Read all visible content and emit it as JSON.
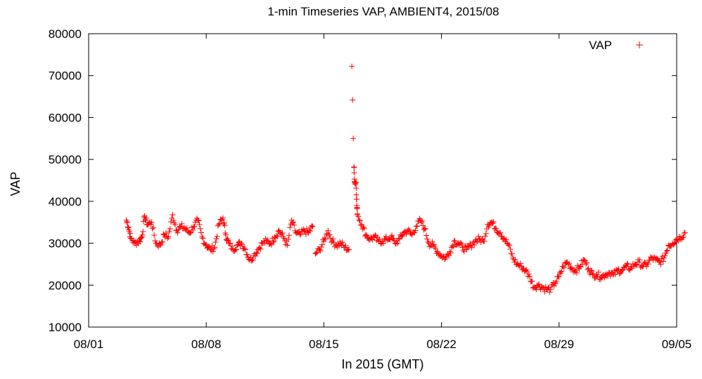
{
  "chart_data": {
    "type": "scatter",
    "title": "1-min Timeseries VAP, AMBIENT4, 2015/08",
    "xlabel": "In 2015 (GMT)",
    "ylabel": "VAP",
    "x_ticks": [
      "08/01",
      "08/08",
      "08/15",
      "08/22",
      "08/29",
      "09/05"
    ],
    "y_ticks": [
      "10000",
      "20000",
      "30000",
      "40000",
      "50000",
      "60000",
      "70000",
      "80000"
    ],
    "xlim": [
      "2015-08-01",
      "2015-09-05"
    ],
    "ylim": [
      10000,
      80000
    ],
    "grid": false,
    "legend_position": "top-right",
    "marker": "+",
    "color": "#ff0000",
    "series": [
      {
        "name": "VAP",
        "points": [
          [
            "2015-08-03 06:00",
            35500
          ],
          [
            "2015-08-03 09:00",
            33800
          ],
          [
            "2015-08-03 12:00",
            31200
          ],
          [
            "2015-08-03 18:00",
            30000
          ],
          [
            "2015-08-04 00:00",
            30500
          ],
          [
            "2015-08-04 04:00",
            31500
          ],
          [
            "2015-08-04 08:00",
            36500
          ],
          [
            "2015-08-04 12:00",
            34500
          ],
          [
            "2015-08-04 18:00",
            35000
          ],
          [
            "2015-08-05 00:00",
            30000
          ],
          [
            "2015-08-05 06:00",
            29500
          ],
          [
            "2015-08-05 12:00",
            32000
          ],
          [
            "2015-08-05 18:00",
            31500
          ],
          [
            "2015-08-06 00:00",
            36800
          ],
          [
            "2015-08-06 06:00",
            33000
          ],
          [
            "2015-08-06 12:00",
            34000
          ],
          [
            "2015-08-06 18:00",
            33500
          ],
          [
            "2015-08-07 00:00",
            32500
          ],
          [
            "2015-08-07 06:00",
            34000
          ],
          [
            "2015-08-07 12:00",
            35500
          ],
          [
            "2015-08-07 18:00",
            31500
          ],
          [
            "2015-08-08 00:00",
            29500
          ],
          [
            "2015-08-08 06:00",
            28500
          ],
          [
            "2015-08-08 12:00",
            29000
          ],
          [
            "2015-08-08 18:00",
            34500
          ],
          [
            "2015-08-09 00:00",
            36000
          ],
          [
            "2015-08-09 04:00",
            32000
          ],
          [
            "2015-08-09 08:00",
            30000
          ],
          [
            "2015-08-09 14:00",
            28500
          ],
          [
            "2015-08-09 20:00",
            29500
          ],
          [
            "2015-08-10 02:00",
            30000
          ],
          [
            "2015-08-10 08:00",
            28500
          ],
          [
            "2015-08-10 14:00",
            26000
          ],
          [
            "2015-08-10 20:00",
            27000
          ],
          [
            "2015-08-11 02:00",
            28500
          ],
          [
            "2015-08-11 08:00",
            30000
          ],
          [
            "2015-08-11 14:00",
            30500
          ],
          [
            "2015-08-11 20:00",
            30000
          ],
          [
            "2015-08-12 02:00",
            31500
          ],
          [
            "2015-08-12 08:00",
            33000
          ],
          [
            "2015-08-12 14:00",
            31500
          ],
          [
            "2015-08-12 20:00",
            29500
          ],
          [
            "2015-08-13 02:00",
            35500
          ],
          [
            "2015-08-13 08:00",
            32500
          ],
          [
            "2015-08-13 14:00",
            32000
          ],
          [
            "2015-08-13 20:00",
            33000
          ],
          [
            "2015-08-14 02:00",
            32500
          ],
          [
            "2015-08-14 08:00",
            34000
          ],
          [
            "2015-08-14 12:00",
            27500
          ],
          [
            "2015-08-14 18:00",
            28500
          ],
          [
            "2015-08-15 00:00",
            30500
          ],
          [
            "2015-08-15 06:00",
            33000
          ],
          [
            "2015-08-15 12:00",
            30500
          ],
          [
            "2015-08-15 18:00",
            29500
          ],
          [
            "2015-08-16 00:00",
            30000
          ],
          [
            "2015-08-16 06:00",
            29000
          ],
          [
            "2015-08-16 12:00",
            28500
          ],
          [
            "2015-08-16 16:00",
            72200
          ],
          [
            "2015-08-16 17:00",
            64200
          ],
          [
            "2015-08-16 18:00",
            55000
          ],
          [
            "2015-08-16 19:00",
            48200
          ],
          [
            "2015-08-16 20:00",
            44500
          ],
          [
            "2015-08-16 22:00",
            44500
          ],
          [
            "2015-08-16 23:00",
            39000
          ],
          [
            "2015-08-17 00:00",
            37000
          ],
          [
            "2015-08-17 06:00",
            34500
          ],
          [
            "2015-08-17 12:00",
            32000
          ],
          [
            "2015-08-17 18:00",
            31000
          ],
          [
            "2015-08-18 00:00",
            31500
          ],
          [
            "2015-08-18 06:00",
            30500
          ],
          [
            "2015-08-18 12:00",
            30500
          ],
          [
            "2015-08-18 18:00",
            31000
          ],
          [
            "2015-08-19 00:00",
            31500
          ],
          [
            "2015-08-19 06:00",
            30000
          ],
          [
            "2015-08-19 12:00",
            31000
          ],
          [
            "2015-08-19 18:00",
            32500
          ],
          [
            "2015-08-20 00:00",
            33000
          ],
          [
            "2015-08-20 06:00",
            32000
          ],
          [
            "2015-08-20 12:00",
            34000
          ],
          [
            "2015-08-20 18:00",
            35500
          ],
          [
            "2015-08-21 00:00",
            33500
          ],
          [
            "2015-08-21 06:00",
            30000
          ],
          [
            "2015-08-21 12:00",
            29500
          ],
          [
            "2015-08-21 18:00",
            28000
          ],
          [
            "2015-08-22 00:00",
            27000
          ],
          [
            "2015-08-22 06:00",
            26500
          ],
          [
            "2015-08-22 12:00",
            28000
          ],
          [
            "2015-08-22 18:00",
            30500
          ],
          [
            "2015-08-23 00:00",
            30000
          ],
          [
            "2015-08-23 06:00",
            29000
          ],
          [
            "2015-08-23 12:00",
            28500
          ],
          [
            "2015-08-23 18:00",
            29500
          ],
          [
            "2015-08-24 00:00",
            30500
          ],
          [
            "2015-08-24 06:00",
            31000
          ],
          [
            "2015-08-24 12:00",
            30500
          ],
          [
            "2015-08-24 18:00",
            34500
          ],
          [
            "2015-08-25 00:00",
            35000
          ],
          [
            "2015-08-25 06:00",
            33500
          ],
          [
            "2015-08-25 12:00",
            32500
          ],
          [
            "2015-08-25 18:00",
            31000
          ],
          [
            "2015-08-26 00:00",
            29500
          ],
          [
            "2015-08-26 06:00",
            26500
          ],
          [
            "2015-08-26 12:00",
            25000
          ],
          [
            "2015-08-26 18:00",
            24500
          ],
          [
            "2015-08-27 00:00",
            23500
          ],
          [
            "2015-08-27 06:00",
            22000
          ],
          [
            "2015-08-27 12:00",
            19500
          ],
          [
            "2015-08-27 18:00",
            20000
          ],
          [
            "2015-08-28 00:00",
            19500
          ],
          [
            "2015-08-28 06:00",
            19000
          ],
          [
            "2015-08-28 12:00",
            19000
          ],
          [
            "2015-08-28 18:00",
            20500
          ],
          [
            "2015-08-29 00:00",
            22000
          ],
          [
            "2015-08-29 06:00",
            24500
          ],
          [
            "2015-08-29 12:00",
            25500
          ],
          [
            "2015-08-29 18:00",
            24000
          ],
          [
            "2015-08-30 00:00",
            23500
          ],
          [
            "2015-08-30 06:00",
            24500
          ],
          [
            "2015-08-30 12:00",
            26000
          ],
          [
            "2015-08-30 18:00",
            24000
          ],
          [
            "2015-08-31 00:00",
            22500
          ],
          [
            "2015-08-31 06:00",
            22500
          ],
          [
            "2015-08-31 12:00",
            22000
          ],
          [
            "2015-08-31 18:00",
            22500
          ],
          [
            "2015-09-01 00:00",
            23000
          ],
          [
            "2015-09-01 06:00",
            22500
          ],
          [
            "2015-09-01 12:00",
            23500
          ],
          [
            "2015-09-01 18:00",
            23500
          ],
          [
            "2015-09-02 00:00",
            24500
          ],
          [
            "2015-09-02 06:00",
            24000
          ],
          [
            "2015-09-02 12:00",
            25000
          ],
          [
            "2015-09-02 18:00",
            25500
          ],
          [
            "2015-09-03 00:00",
            24500
          ],
          [
            "2015-09-03 06:00",
            25000
          ],
          [
            "2015-09-03 12:00",
            26500
          ],
          [
            "2015-09-03 18:00",
            26000
          ],
          [
            "2015-09-04 00:00",
            25500
          ],
          [
            "2015-09-04 06:00",
            26500
          ],
          [
            "2015-09-04 12:00",
            29500
          ],
          [
            "2015-09-04 18:00",
            30000
          ],
          [
            "2015-09-05 00:00",
            31000
          ],
          [
            "2015-09-05 06:00",
            31500
          ],
          [
            "2015-09-05 12:00",
            32500
          ]
        ]
      }
    ]
  }
}
